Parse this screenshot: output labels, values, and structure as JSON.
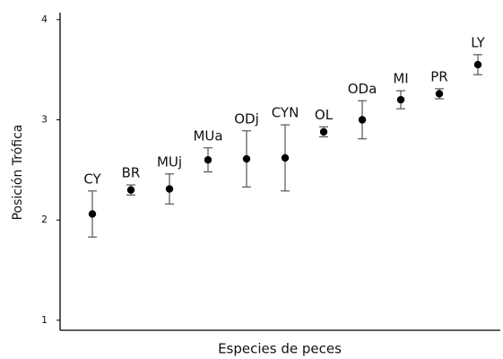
{
  "chart_data": {
    "type": "errorbar",
    "xlabel": "Especies de peces",
    "ylabel": "Posición Trófica",
    "categories": [
      "CY",
      "BR",
      "MUj",
      "MUa",
      "ODj",
      "CYN",
      "OL",
      "ODa",
      "MI",
      "PR",
      "LY"
    ],
    "values": [
      2.06,
      2.3,
      2.31,
      2.6,
      2.61,
      2.62,
      2.88,
      3.0,
      3.2,
      3.26,
      3.55
    ],
    "errors": [
      0.23,
      0.05,
      0.15,
      0.12,
      0.28,
      0.33,
      0.05,
      0.19,
      0.09,
      0.05,
      0.1
    ],
    "color": "#000000",
    "error_color": "#555555",
    "ylim": [
      0.9,
      4.07
    ],
    "yticks": [
      1,
      2,
      3,
      4
    ]
  }
}
